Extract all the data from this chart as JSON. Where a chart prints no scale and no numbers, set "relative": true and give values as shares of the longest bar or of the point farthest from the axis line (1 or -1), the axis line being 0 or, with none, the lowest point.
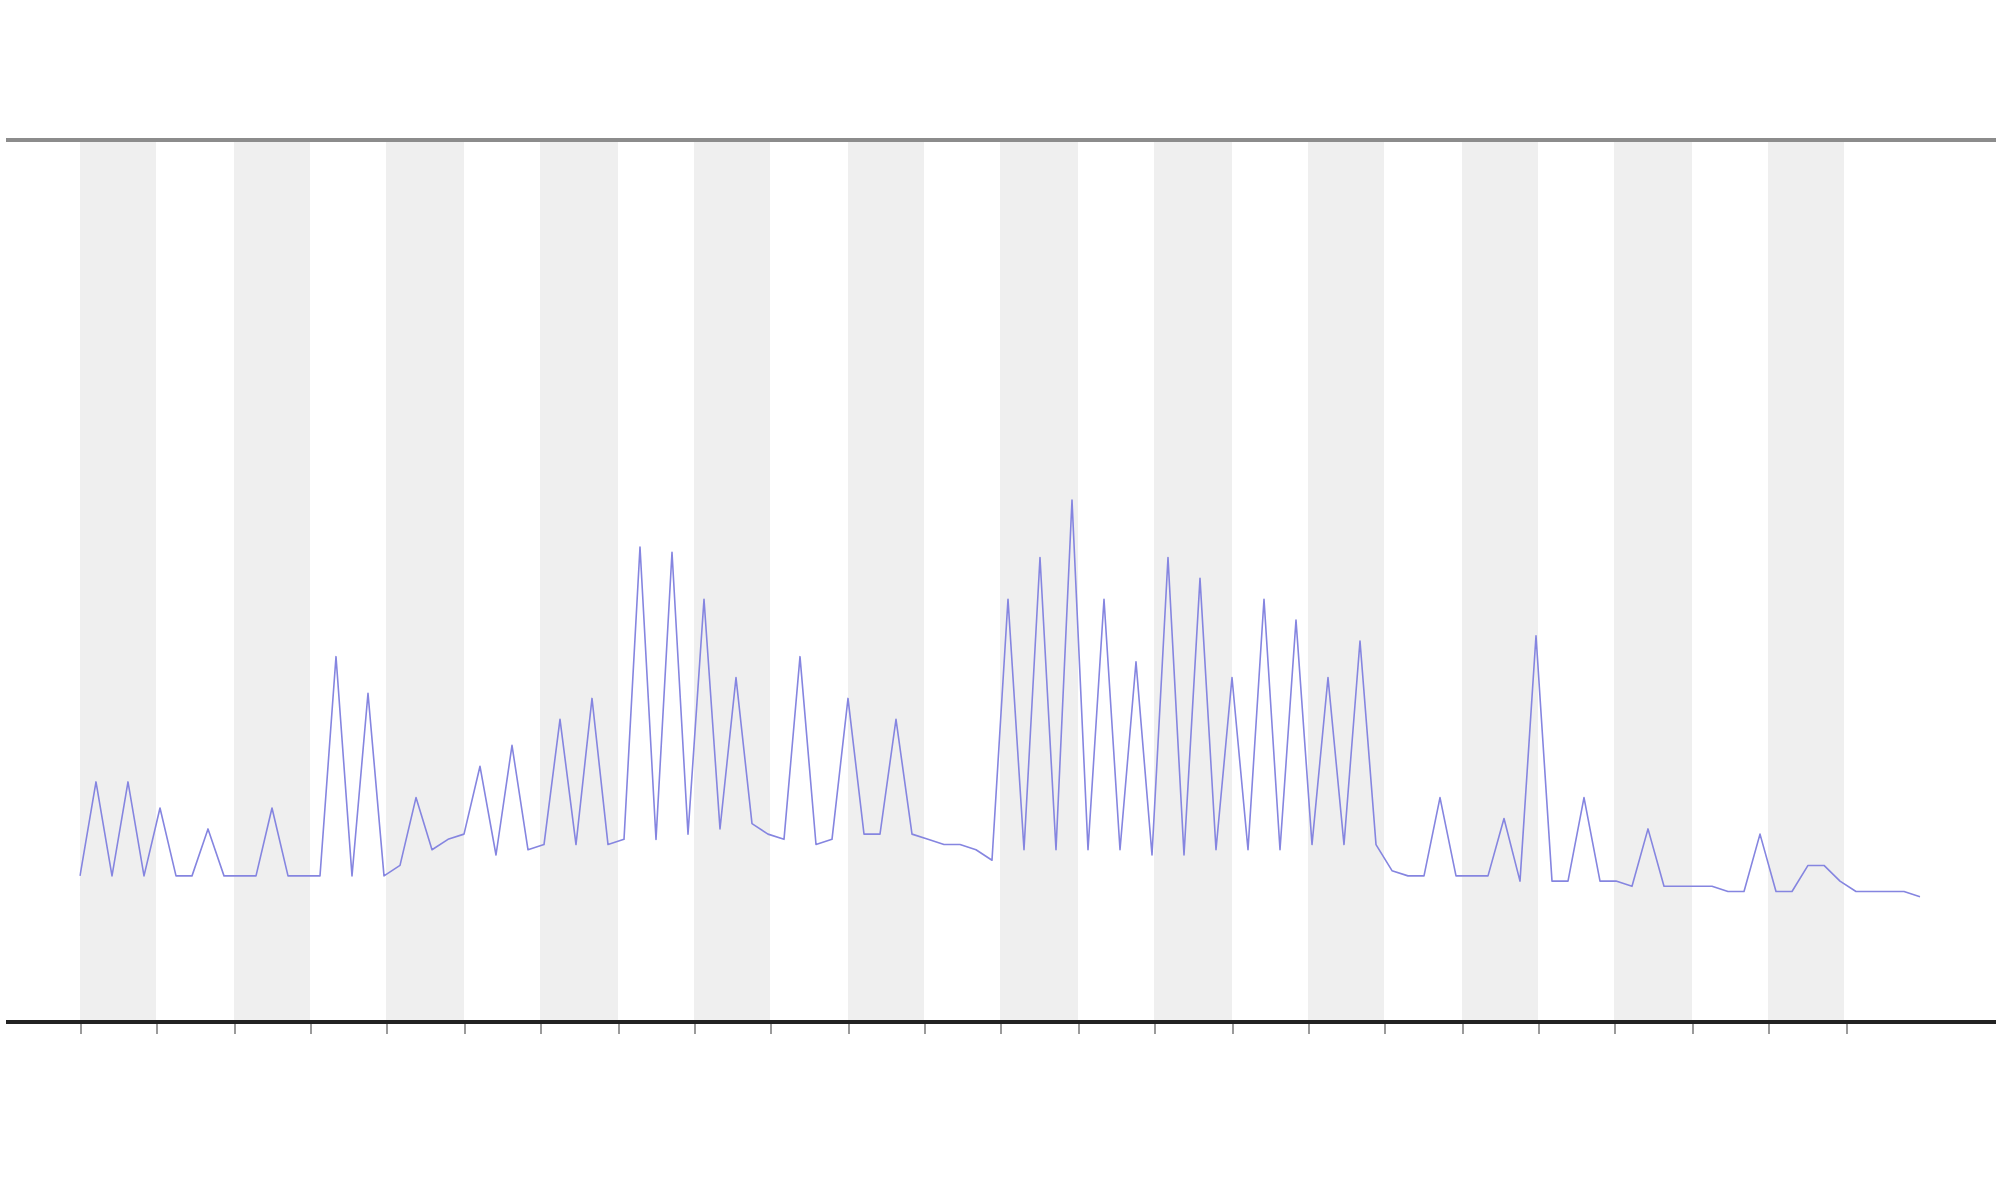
{
  "chart_data": {
    "type": "line",
    "relative": true,
    "marker": "none",
    "color": "#8585e0",
    "categories": [
      null,
      null,
      null,
      null,
      null,
      null,
      null,
      null,
      null,
      null,
      null,
      null,
      null,
      null,
      null,
      null,
      null,
      null,
      null,
      null,
      null,
      null,
      null,
      null,
      null,
      null,
      null,
      null,
      null,
      null,
      null,
      null,
      null,
      null,
      null,
      null,
      null,
      null,
      null,
      null,
      null,
      null,
      null,
      null,
      null,
      null,
      null,
      null,
      null,
      null,
      null,
      null,
      null,
      null,
      null,
      null,
      null,
      null,
      null,
      null,
      null,
      null,
      null,
      null,
      null,
      null,
      null,
      null,
      null,
      null,
      null,
      null,
      null,
      null,
      null,
      null,
      null,
      null,
      null,
      null,
      null,
      null,
      null,
      null,
      null,
      null,
      null,
      null,
      null,
      null,
      null,
      null,
      null,
      null,
      null,
      null,
      null,
      null,
      null,
      null,
      null,
      null,
      null,
      null,
      null,
      null,
      null,
      null,
      null,
      null,
      null,
      null,
      null,
      null,
      null,
      null
    ],
    "values": [
      0.28,
      0.46,
      0.28,
      0.46,
      0.28,
      0.41,
      0.28,
      0.28,
      0.37,
      0.28,
      0.28,
      0.28,
      0.41,
      0.28,
      0.28,
      0.28,
      0.7,
      0.28,
      0.63,
      0.28,
      0.3,
      0.43,
      0.33,
      0.35,
      0.36,
      0.49,
      0.32,
      0.53,
      0.33,
      0.34,
      0.58,
      0.34,
      0.62,
      0.34,
      0.35,
      0.91,
      0.35,
      0.9,
      0.36,
      0.81,
      0.37,
      0.66,
      0.38,
      0.36,
      0.35,
      0.7,
      0.34,
      0.35,
      0.62,
      0.36,
      0.36,
      0.58,
      0.36,
      0.35,
      0.34,
      0.34,
      0.33,
      0.31,
      0.81,
      0.33,
      0.89,
      0.33,
      1,
      0.33,
      0.81,
      0.33,
      0.69,
      0.32,
      0.89,
      0.32,
      0.85,
      0.33,
      0.66,
      0.33,
      0.81,
      0.33,
      0.77,
      0.34,
      0.66,
      0.34,
      0.73,
      0.34,
      0.29,
      0.28,
      0.28,
      0.43,
      0.28,
      0.28,
      0.28,
      0.39,
      0.27,
      0.74,
      0.27,
      0.27,
      0.43,
      0.27,
      0.27,
      0.26,
      0.37,
      0.26,
      0.26,
      0.26,
      0.26,
      0.25,
      0.25,
      0.36,
      0.25,
      0.25,
      0.3,
      0.3,
      0.27,
      0.25,
      0.25,
      0.25,
      0.25,
      0.24
    ]
  }
}
